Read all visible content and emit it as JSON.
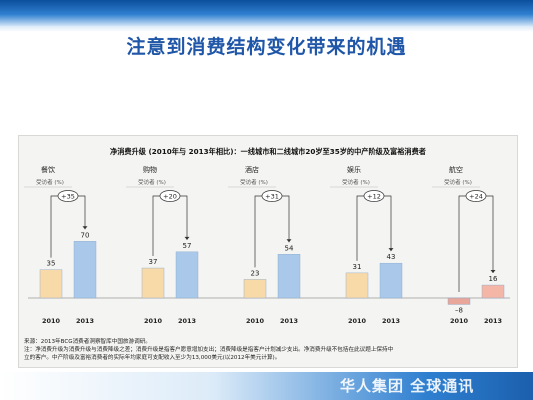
{
  "slide": {
    "title": "注意到消费结构变化带来的机遇",
    "logo_text": "华人集团 全球通讯"
  },
  "colors": {
    "bar_2010": "#f8d9a8",
    "bar_2013": "#a9c8ea",
    "bar_negative": "#e8a79a",
    "bar_2013_positive_airline": "#f3b6a7",
    "title_blue": "#1f56a8"
  },
  "chart_data": {
    "type": "bar",
    "title": "净消费升级 (2010年与 2013年相比)：一线城市和二线城市20岁至35岁的中产阶级及富裕消费者",
    "ylabel_unit": "受访者 (%)",
    "x_labels": [
      "2010",
      "2013"
    ],
    "groups": [
      {
        "name": "餐饮",
        "values": [
          35,
          70
        ],
        "delta": "+35"
      },
      {
        "name": "购物",
        "values": [
          37,
          57
        ],
        "delta": "+20"
      },
      {
        "name": "酒店",
        "values": [
          23,
          54
        ],
        "delta": "+31"
      },
      {
        "name": "娱乐",
        "values": [
          31,
          43
        ],
        "delta": "+12"
      },
      {
        "name": "航空",
        "values": [
          -8,
          16
        ],
        "delta": "+24"
      }
    ],
    "value_labels": [
      [
        "35",
        "70"
      ],
      [
        "37",
        "57"
      ],
      [
        "23",
        "54"
      ],
      [
        "31",
        "43"
      ],
      [
        "–8",
        "16"
      ]
    ]
  },
  "notes": {
    "source": "来源：2013年BCG消费者洞察智库中国旅游调研。",
    "line1": "注：净消费升级为消费升级与消费降级之差；消费升级是指客户愿意增加支出；消费降级是指客户计划减少支出。净消费升级不包括在此议题上保持中",
    "line2": "立的客户。中产阶级及富裕消费者的实际年均家庭可支配收入至少为13,000美元(以2012年美元计算)。"
  }
}
